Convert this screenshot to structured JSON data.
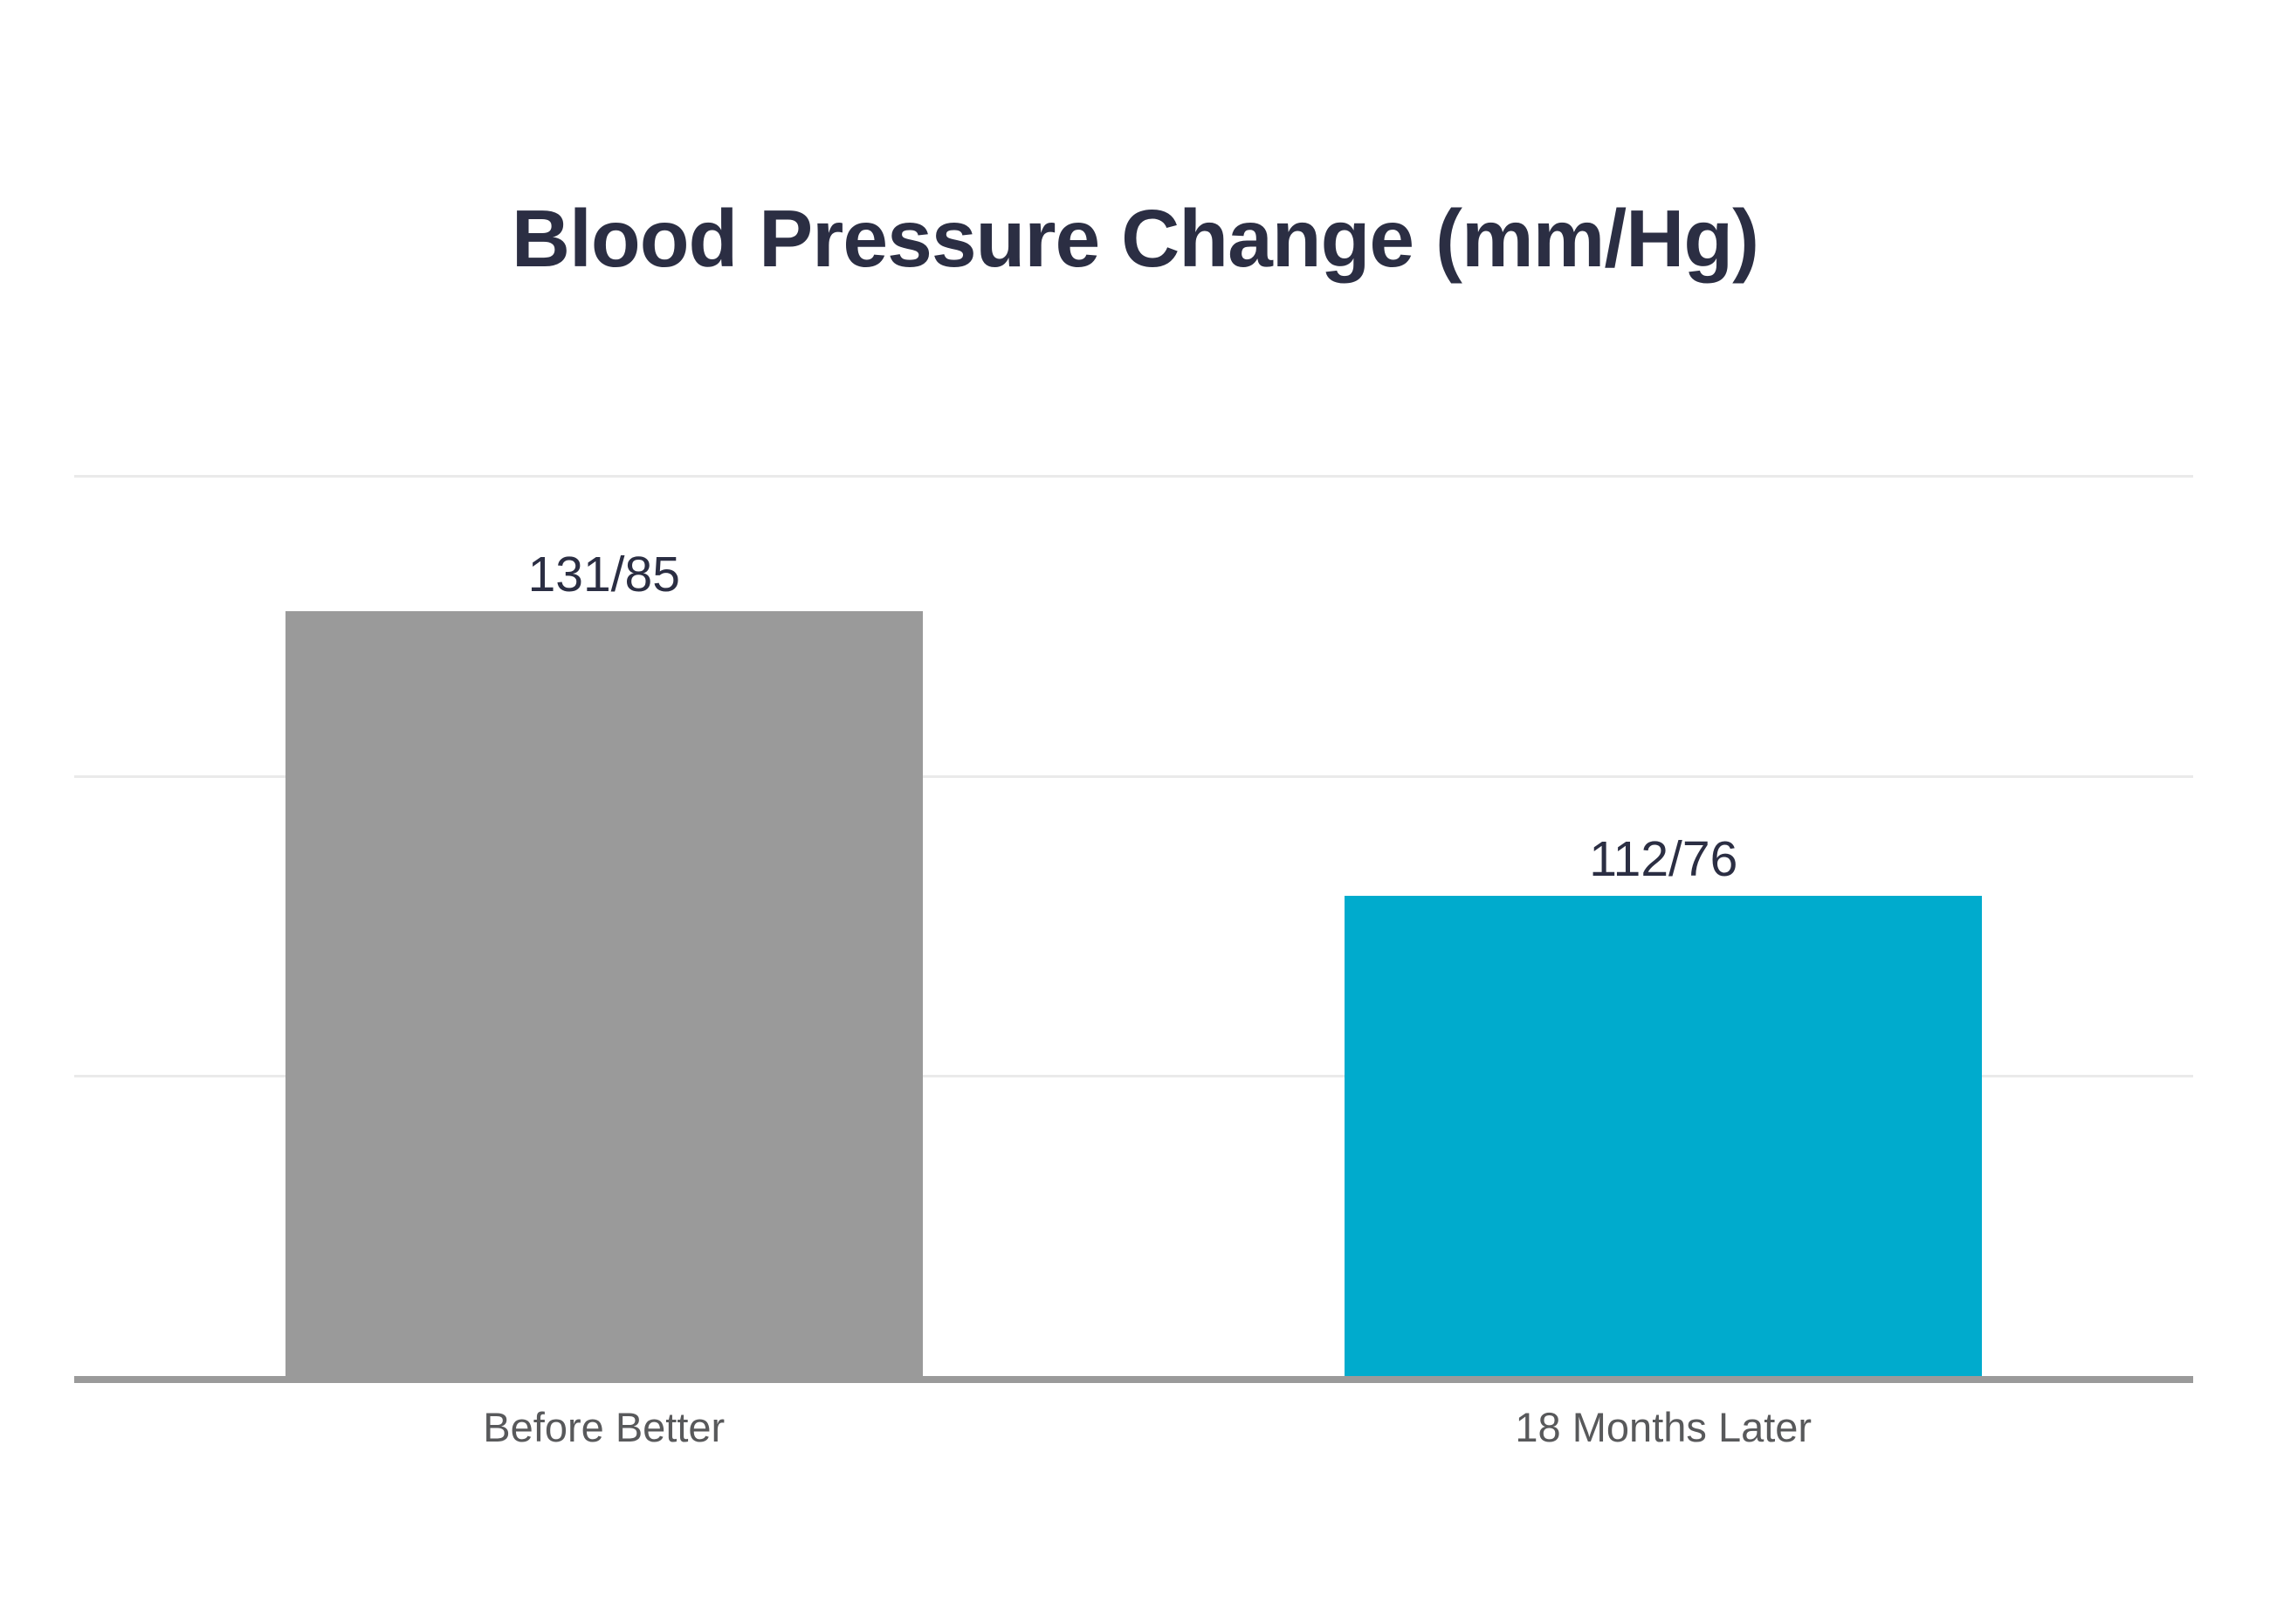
{
  "chart_data": {
    "type": "bar",
    "title": "Blood Pressure Change (mm/Hg)",
    "xlabel": "",
    "ylabel": "",
    "categories": [
      "Before Better",
      "18 Months Later"
    ],
    "bars": [
      {
        "category": "Before Better",
        "label": "131/85",
        "systolic": 131,
        "diastolic": 85,
        "color": "#9A9A9A"
      },
      {
        "category": "18 Months Later",
        "label": "112/76",
        "systolic": 112,
        "diastolic": 76,
        "color": "#00ABCD"
      }
    ],
    "bar_height_metric": "systolic",
    "ylim": [
      80,
      140
    ],
    "gridline_step": 20,
    "grid": true,
    "legend": false,
    "y_tick_labels_shown": false
  },
  "colors": {
    "background": "#FFFFFF",
    "title_text": "#2B2E43",
    "value_label_text": "#2B2E43",
    "category_label_text": "#58595B",
    "gridline": "#EAEAEA",
    "axis_line": "#9A9A9A"
  }
}
